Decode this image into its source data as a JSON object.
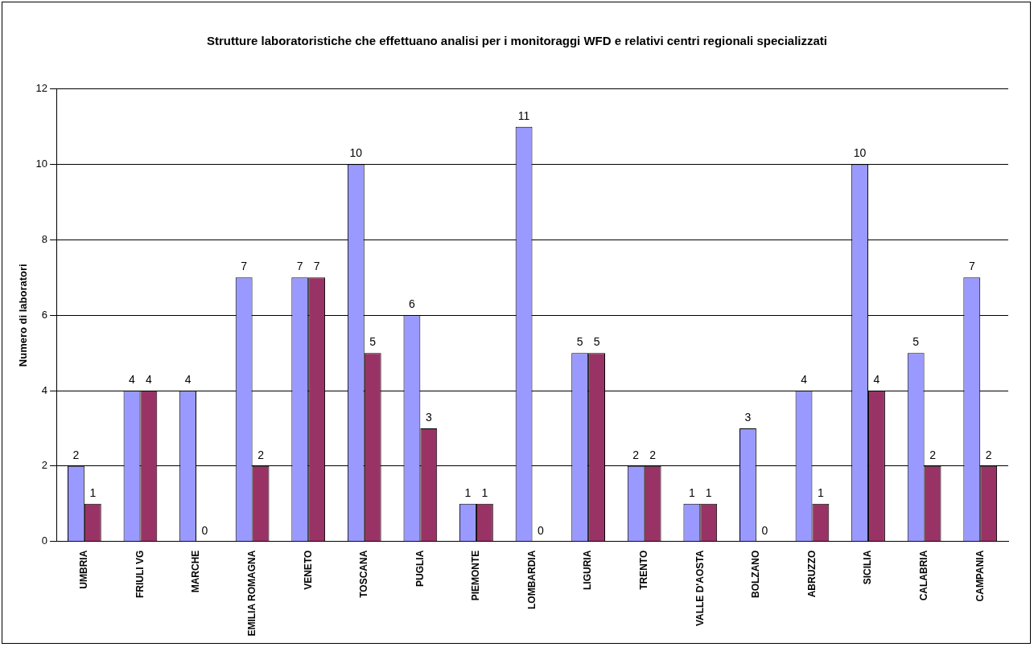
{
  "chart_data": {
    "type": "bar",
    "title": "Strutture laboratoristiche che effettuano analisi per i monitoraggi WFD e relativi centri regionali specializzati",
    "ylabel": "Numero di laboratori",
    "categories": [
      "UMBRIA",
      "FRIULI VG",
      "MARCHE",
      "EMILIA ROMAGNA",
      "VENETO",
      "TOSCANA",
      "PUGLIA",
      "PIEMONTE",
      "LOMBARDIA",
      "LIGURIA",
      "TRENTO",
      "VALLE D'AOSTA",
      "BOLZANO",
      "ABRUZZO",
      "SICILIA",
      "CALABRIA",
      "CAMPANIA"
    ],
    "series": [
      {
        "color": "#9999ff",
        "values": [
          2,
          4,
          4,
          7,
          7,
          10,
          6,
          1,
          11,
          5,
          2,
          1,
          3,
          4,
          10,
          5,
          7
        ]
      },
      {
        "color": "#993366",
        "values": [
          1,
          4,
          0,
          2,
          7,
          5,
          3,
          1,
          0,
          5,
          2,
          1,
          0,
          1,
          4,
          2,
          2
        ]
      }
    ],
    "ylim": [
      0,
      12
    ],
    "yticks": [
      0,
      2,
      4,
      6,
      8,
      10,
      12
    ],
    "grid": "y",
    "data_labels": true,
    "legend": false
  }
}
